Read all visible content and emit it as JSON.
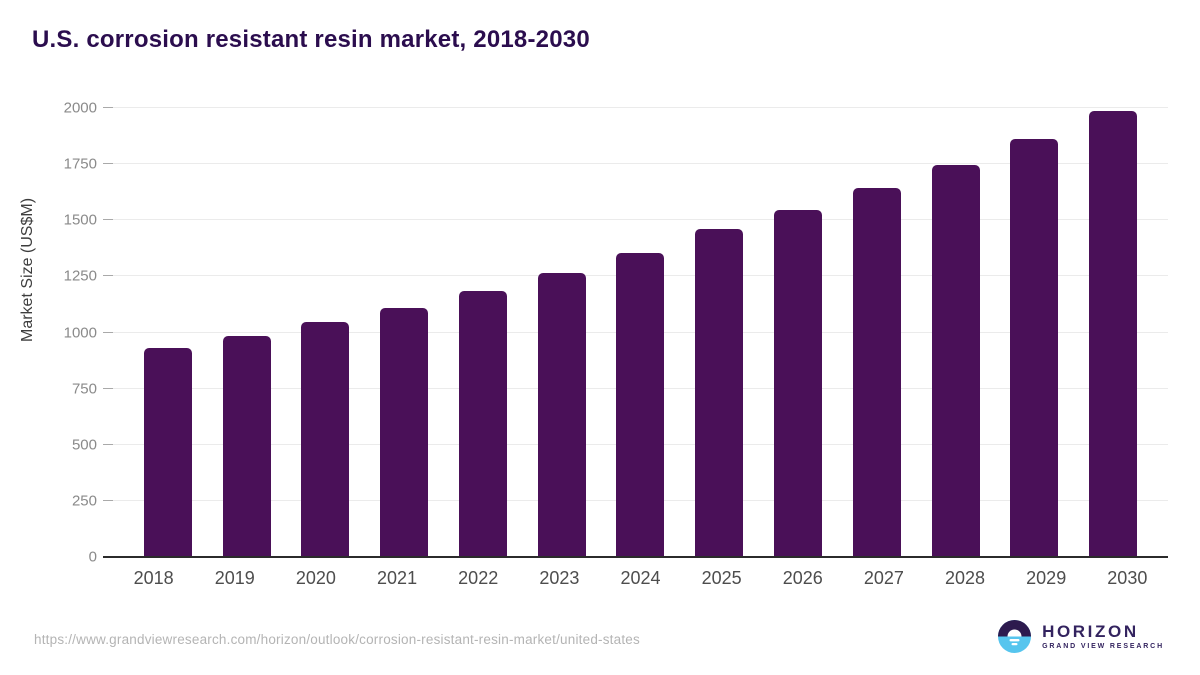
{
  "title": "U.S. corrosion resistant resin market, 2018-2030",
  "footer": {
    "source_url": "https://www.grandviewresearch.com/horizon/outlook/corrosion-resistant-resin-market/united-states"
  },
  "logo": {
    "name": "HORIZON",
    "subtext": "GRAND VIEW RESEARCH"
  },
  "colors": {
    "background": "#ffffff",
    "title": "#2b0d4e",
    "bar": "#4a1058",
    "axis_line": "#2b2b2b",
    "gridline": "#ebebeb",
    "y_tick_label": "#8a8a8a",
    "x_tick_label": "#4d4d4d",
    "y_axis_title": "#3d3d3d",
    "source_text": "#b4b4b4",
    "logo_purple": "#33235f",
    "logo_dark_half": "#2d1a4e",
    "logo_blue_half": "#56c5ee"
  },
  "chart_data": {
    "type": "bar",
    "title": "U.S. corrosion resistant resin market, 2018-2030",
    "xlabel": "",
    "ylabel": "Market Size (US$M)",
    "categories": [
      "2018",
      "2019",
      "2020",
      "2021",
      "2022",
      "2023",
      "2024",
      "2025",
      "2026",
      "2027",
      "2028",
      "2029",
      "2030"
    ],
    "values": [
      930,
      985,
      1045,
      1110,
      1185,
      1265,
      1355,
      1460,
      1545,
      1645,
      1745,
      1860,
      1985
    ],
    "unit": "US$M",
    "ylim": [
      0,
      2000
    ],
    "yticks": [
      0,
      250,
      500,
      750,
      1000,
      1250,
      1500,
      1750,
      2000
    ],
    "grid": true,
    "legend": false,
    "bar_color": "#4a1058"
  }
}
